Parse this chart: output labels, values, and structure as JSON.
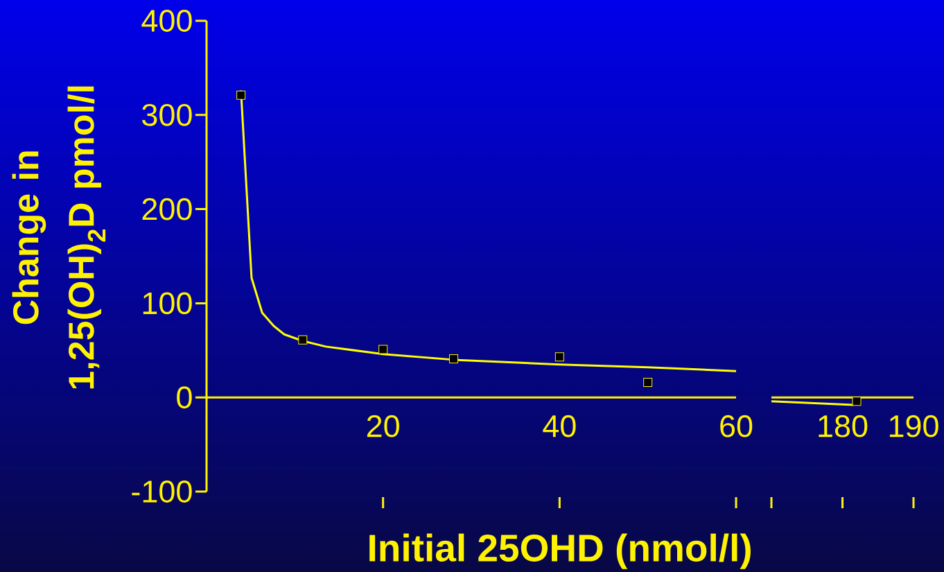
{
  "chart_data": [
    {
      "type": "scatter",
      "xlabel": "Initial 25OHD (nmol/l)",
      "ylabel": "Change in 1,25(OH)$_{2}$D pmol/l",
      "xlim": [
        0,
        60
      ],
      "ylim": [
        -100,
        400
      ],
      "xticks": [
        20,
        40,
        60
      ],
      "yticks": [
        -100,
        0,
        100,
        200,
        300,
        400
      ],
      "series": [
        {
          "type": "line",
          "color": "#ffff00",
          "x": [
            3.9,
            5.1,
            6.3,
            7.6,
            8.8,
            10.9,
            13.5,
            20,
            28,
            40,
            50,
            60
          ],
          "values": [
            326,
            127,
            90,
            76,
            67,
            60,
            54,
            46,
            40,
            35,
            32,
            28
          ]
        },
        {
          "type": "scatter",
          "color": "#000000",
          "marker": "square",
          "x": [
            3.9,
            10.9,
            20,
            28,
            40,
            50
          ],
          "values": [
            321,
            61,
            51,
            41,
            43,
            16
          ]
        }
      ]
    },
    {
      "type": "scatter",
      "xlim": [
        170,
        190
      ],
      "ylim": [
        -100,
        400
      ],
      "xticks": [
        {
          "value": 170,
          "label": null
        },
        180,
        190
      ],
      "tick_labels": "x",
      "series": [
        {
          "type": "line",
          "color": "#ffff00",
          "x": [
            170,
            181.5
          ],
          "values": [
            -4,
            -8
          ]
        },
        {
          "type": "scatter",
          "color": "#000000",
          "marker": "square",
          "x": [
            182
          ],
          "values": [
            -4
          ]
        }
      ]
    }
  ]
}
